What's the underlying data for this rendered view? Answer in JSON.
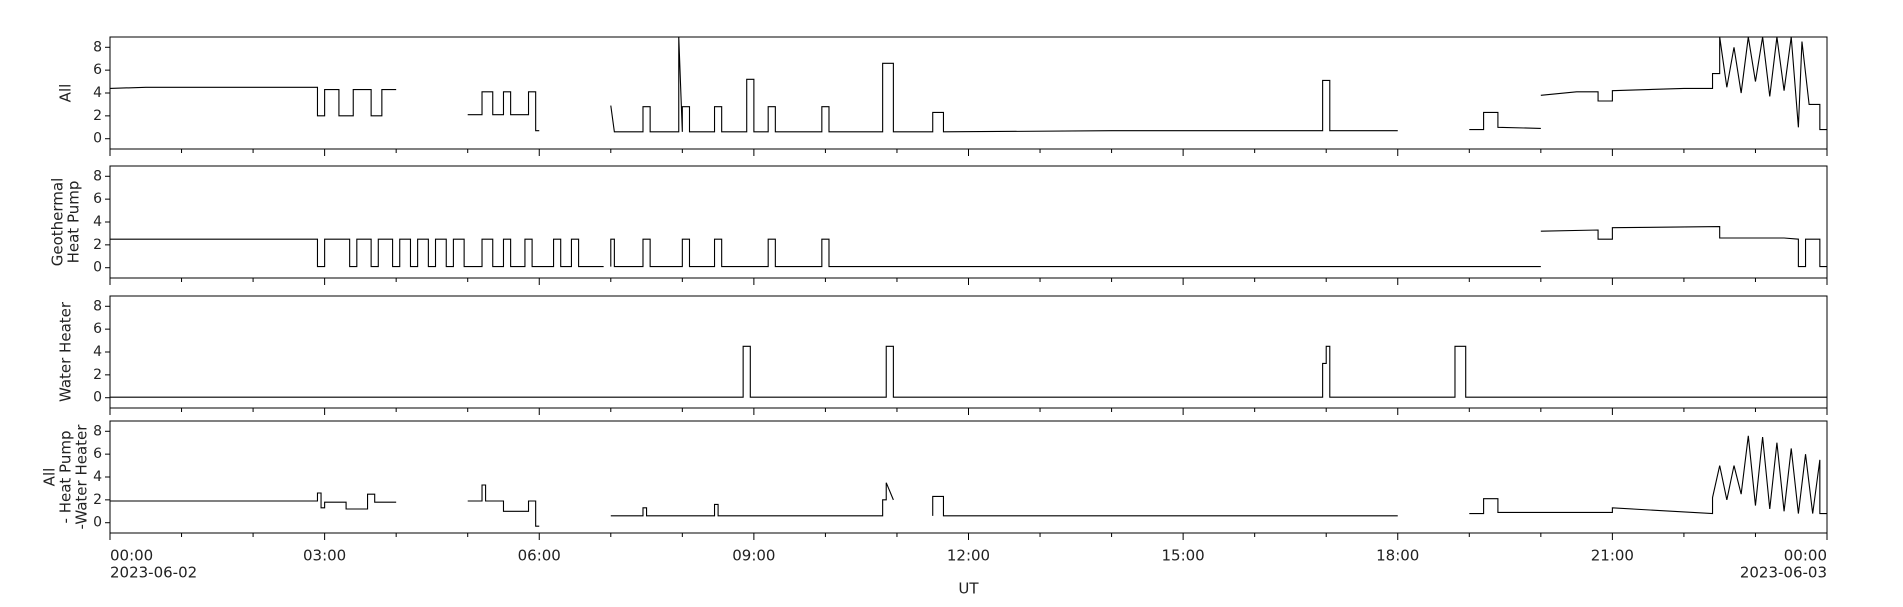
{
  "chart_data": [
    {
      "type": "line",
      "ylabel": [
        "All"
      ],
      "xlim": [
        0,
        24
      ],
      "ylim": [
        -0.9,
        8.9
      ],
      "yticks": [
        0,
        2,
        4,
        6,
        8
      ],
      "color": "#000000",
      "x": [
        0,
        0.5,
        2.9,
        2.9,
        3.0,
        3.0,
        3.2,
        3.2,
        3.4,
        3.4,
        3.65,
        3.65,
        3.8,
        3.8,
        4.0,
        4.5,
        5.0,
        5.2,
        5.2,
        5.35,
        5.35,
        5.5,
        5.5,
        5.6,
        5.6,
        5.85,
        5.85,
        5.95,
        5.95,
        6.0,
        6.5,
        7.0,
        7.05,
        7.45,
        7.45,
        7.55,
        7.55,
        7.95,
        7.95,
        8.0,
        8.0,
        8.1,
        8.1,
        8.45,
        8.45,
        8.55,
        8.55,
        8.9,
        8.9,
        9.0,
        9.0,
        9.2,
        9.2,
        9.3,
        9.3,
        9.95,
        9.95,
        10.05,
        10.05,
        10.8,
        10.8,
        10.95,
        10.95,
        11.5,
        11.5,
        11.65,
        11.65,
        14,
        16.95,
        16.95,
        17.05,
        17.05,
        18,
        18.5,
        19.0,
        19.2,
        19.2,
        19.4,
        19.4,
        20.0,
        20.0,
        20.0,
        20.5,
        20.8,
        20.8,
        21.0,
        21.0,
        22.0,
        22.4,
        22.4,
        22.5,
        22.5,
        22.6,
        22.7,
        22.8,
        22.9,
        23.0,
        23.1,
        23.2,
        23.3,
        23.4,
        23.5,
        23.6,
        23.65,
        23.75,
        23.9,
        23.9,
        24
      ],
      "values": [
        4.4,
        4.5,
        4.5,
        2.0,
        2.0,
        4.3,
        4.3,
        2.0,
        2.0,
        4.3,
        4.3,
        2.0,
        2.0,
        4.3,
        4.3,
        null,
        2.1,
        2.1,
        4.1,
        4.1,
        2.1,
        2.1,
        4.1,
        4.1,
        2.1,
        2.1,
        4.1,
        4.1,
        0.7,
        0.7,
        null,
        2.9,
        0.6,
        0.6,
        2.8,
        2.8,
        0.6,
        0.6,
        8.9,
        0.6,
        2.8,
        2.8,
        0.6,
        0.6,
        2.8,
        2.8,
        0.6,
        0.6,
        5.2,
        5.2,
        0.6,
        0.6,
        2.8,
        2.8,
        0.6,
        0.6,
        2.8,
        2.8,
        0.6,
        0.6,
        6.6,
        6.6,
        0.6,
        0.6,
        2.3,
        2.3,
        0.6,
        0.7,
        0.7,
        5.1,
        5.1,
        0.7,
        0.7,
        null,
        0.8,
        0.8,
        2.3,
        2.3,
        1.0,
        0.9,
        null,
        3.8,
        4.1,
        4.1,
        3.3,
        3.3,
        4.2,
        4.4,
        4.4,
        5.7,
        5.7,
        8.9,
        4.5,
        8.0,
        4.0,
        8.9,
        5.0,
        8.9,
        3.7,
        8.9,
        4.2,
        8.9,
        1.0,
        8.5,
        3.0,
        3.0,
        0.8,
        0.8
      ]
    },
    {
      "type": "line",
      "ylabel": [
        "Geothermal",
        "Heat Pump"
      ],
      "xlim": [
        0,
        24
      ],
      "ylim": [
        -0.9,
        8.9
      ],
      "yticks": [
        0,
        2,
        4,
        6,
        8
      ],
      "color": "#000000",
      "x": [
        0,
        2.9,
        2.9,
        3.0,
        3.0,
        3.35,
        3.35,
        3.45,
        3.45,
        3.65,
        3.65,
        3.75,
        3.75,
        3.95,
        3.95,
        4.05,
        4.05,
        4.2,
        4.2,
        4.3,
        4.3,
        4.45,
        4.45,
        4.55,
        4.55,
        4.7,
        4.7,
        4.8,
        4.8,
        4.95,
        4.95,
        5.2,
        5.2,
        5.35,
        5.35,
        5.5,
        5.5,
        5.6,
        5.6,
        5.8,
        5.8,
        5.9,
        5.9,
        6.2,
        6.2,
        6.3,
        6.3,
        6.45,
        6.45,
        6.55,
        6.55,
        6.9,
        6.95,
        7.0,
        7.0,
        7.05,
        7.05,
        7.45,
        7.45,
        7.55,
        7.55,
        8.0,
        8.0,
        8.1,
        8.1,
        8.45,
        8.45,
        8.55,
        8.55,
        9.2,
        9.2,
        9.3,
        9.3,
        9.95,
        9.95,
        10.05,
        10.05,
        20.0,
        20.0,
        20.0,
        20.8,
        20.8,
        21.0,
        21.0,
        22.5,
        22.5,
        23.4,
        23.6,
        23.6,
        23.7,
        23.7,
        23.9,
        23.9,
        24
      ],
      "values": [
        2.5,
        2.5,
        0.1,
        0.1,
        2.5,
        2.5,
        0.1,
        0.1,
        2.5,
        2.5,
        0.1,
        0.1,
        2.5,
        2.5,
        0.1,
        0.1,
        2.5,
        2.5,
        0.1,
        0.1,
        2.5,
        2.5,
        0.1,
        0.1,
        2.5,
        2.5,
        0.1,
        0.1,
        2.5,
        2.5,
        0.1,
        0.1,
        2.5,
        2.5,
        0.1,
        0.1,
        2.5,
        2.5,
        0.1,
        0.1,
        2.5,
        2.5,
        0.1,
        0.1,
        2.5,
        2.5,
        0.1,
        0.1,
        2.5,
        2.5,
        0.1,
        0.1,
        null,
        0.1,
        2.5,
        2.5,
        0.1,
        0.1,
        2.5,
        2.5,
        0.1,
        0.1,
        2.5,
        2.5,
        0.1,
        0.1,
        2.5,
        2.5,
        0.1,
        0.1,
        2.5,
        2.5,
        0.1,
        0.1,
        2.5,
        2.5,
        0.1,
        0.1,
        null,
        3.2,
        3.3,
        2.5,
        2.5,
        3.5,
        3.6,
        2.6,
        2.6,
        2.5,
        0.1,
        0.1,
        2.5,
        2.5,
        0.1,
        0.1
      ]
    },
    {
      "type": "line",
      "ylabel": [
        "Water Heater"
      ],
      "xlim": [
        0,
        24
      ],
      "ylim": [
        -0.9,
        8.9
      ],
      "yticks": [
        0,
        2,
        4,
        6,
        8
      ],
      "color": "#000000",
      "x": [
        0,
        8.85,
        8.85,
        8.95,
        8.95,
        10.85,
        10.85,
        10.95,
        10.95,
        16.95,
        16.95,
        17.0,
        17.0,
        17.05,
        17.05,
        18.8,
        18.8,
        18.95,
        18.95,
        24
      ],
      "values": [
        0.05,
        0.05,
        4.5,
        4.5,
        0.05,
        0.05,
        4.5,
        4.5,
        0.05,
        0.05,
        3.0,
        3.0,
        4.5,
        4.5,
        0.05,
        0.05,
        4.5,
        4.5,
        0.05,
        0.05
      ]
    },
    {
      "type": "line",
      "ylabel": [
        "All",
        "- Heat Pump",
        "-Water Heater"
      ],
      "xlim": [
        0,
        24
      ],
      "ylim": [
        -0.9,
        8.9
      ],
      "yticks": [
        0,
        2,
        4,
        6,
        8
      ],
      "color": "#000000",
      "xlabel": "UT",
      "xticks": [
        {
          "value": 0,
          "label": "00:00"
        },
        {
          "value": 3,
          "label": "03:00"
        },
        {
          "value": 6,
          "label": "06:00"
        },
        {
          "value": 9,
          "label": "09:00"
        },
        {
          "value": 12,
          "label": "12:00"
        },
        {
          "value": 15,
          "label": "15:00"
        },
        {
          "value": 18,
          "label": "18:00"
        },
        {
          "value": 21,
          "label": "21:00"
        },
        {
          "value": 24,
          "label": "00:00"
        }
      ],
      "xminorticks": [
        1,
        2,
        4,
        5,
        7,
        8,
        10,
        11,
        13,
        14,
        16,
        17,
        19,
        20,
        22,
        23
      ],
      "date_labels": [
        "2023-06-02",
        "2023-06-03"
      ],
      "x": [
        0,
        2.9,
        2.9,
        2.95,
        2.95,
        3.0,
        3.0,
        3.3,
        3.3,
        3.6,
        3.6,
        3.7,
        3.7,
        4.0,
        4.5,
        5.0,
        5.2,
        5.2,
        5.25,
        5.25,
        5.5,
        5.5,
        5.85,
        5.85,
        5.95,
        5.95,
        6.0,
        6.5,
        7.0,
        7.45,
        7.45,
        7.5,
        7.5,
        8.45,
        8.45,
        8.5,
        8.5,
        10.8,
        10.8,
        10.85,
        10.85,
        10.95,
        11.2,
        11.5,
        11.5,
        11.65,
        11.65,
        18,
        18.5,
        19.0,
        19.2,
        19.2,
        19.4,
        19.4,
        21.0,
        21.0,
        22.4,
        22.4,
        22.5,
        22.6,
        22.7,
        22.8,
        22.9,
        23.0,
        23.1,
        23.2,
        23.3,
        23.4,
        23.5,
        23.6,
        23.7,
        23.8,
        23.9,
        23.9,
        24
      ],
      "values": [
        1.9,
        1.9,
        2.6,
        2.6,
        1.3,
        1.3,
        1.8,
        1.8,
        1.2,
        1.2,
        2.5,
        2.5,
        1.8,
        1.8,
        null,
        1.9,
        1.9,
        3.3,
        3.3,
        1.9,
        1.9,
        1.0,
        1.0,
        1.9,
        1.9,
        -0.3,
        -0.3,
        null,
        0.6,
        0.6,
        1.3,
        1.3,
        0.6,
        0.6,
        1.6,
        1.6,
        0.6,
        0.6,
        2.0,
        2.0,
        3.5,
        2.0,
        null,
        0.6,
        2.3,
        2.3,
        0.6,
        0.6,
        null,
        0.8,
        0.8,
        2.1,
        2.1,
        0.9,
        0.9,
        1.3,
        0.8,
        2.2,
        5.0,
        2.0,
        5.0,
        2.5,
        7.6,
        1.5,
        7.5,
        1.2,
        7.0,
        1.0,
        6.5,
        0.8,
        6.0,
        0.8,
        5.5,
        0.8,
        0.8
      ]
    }
  ]
}
